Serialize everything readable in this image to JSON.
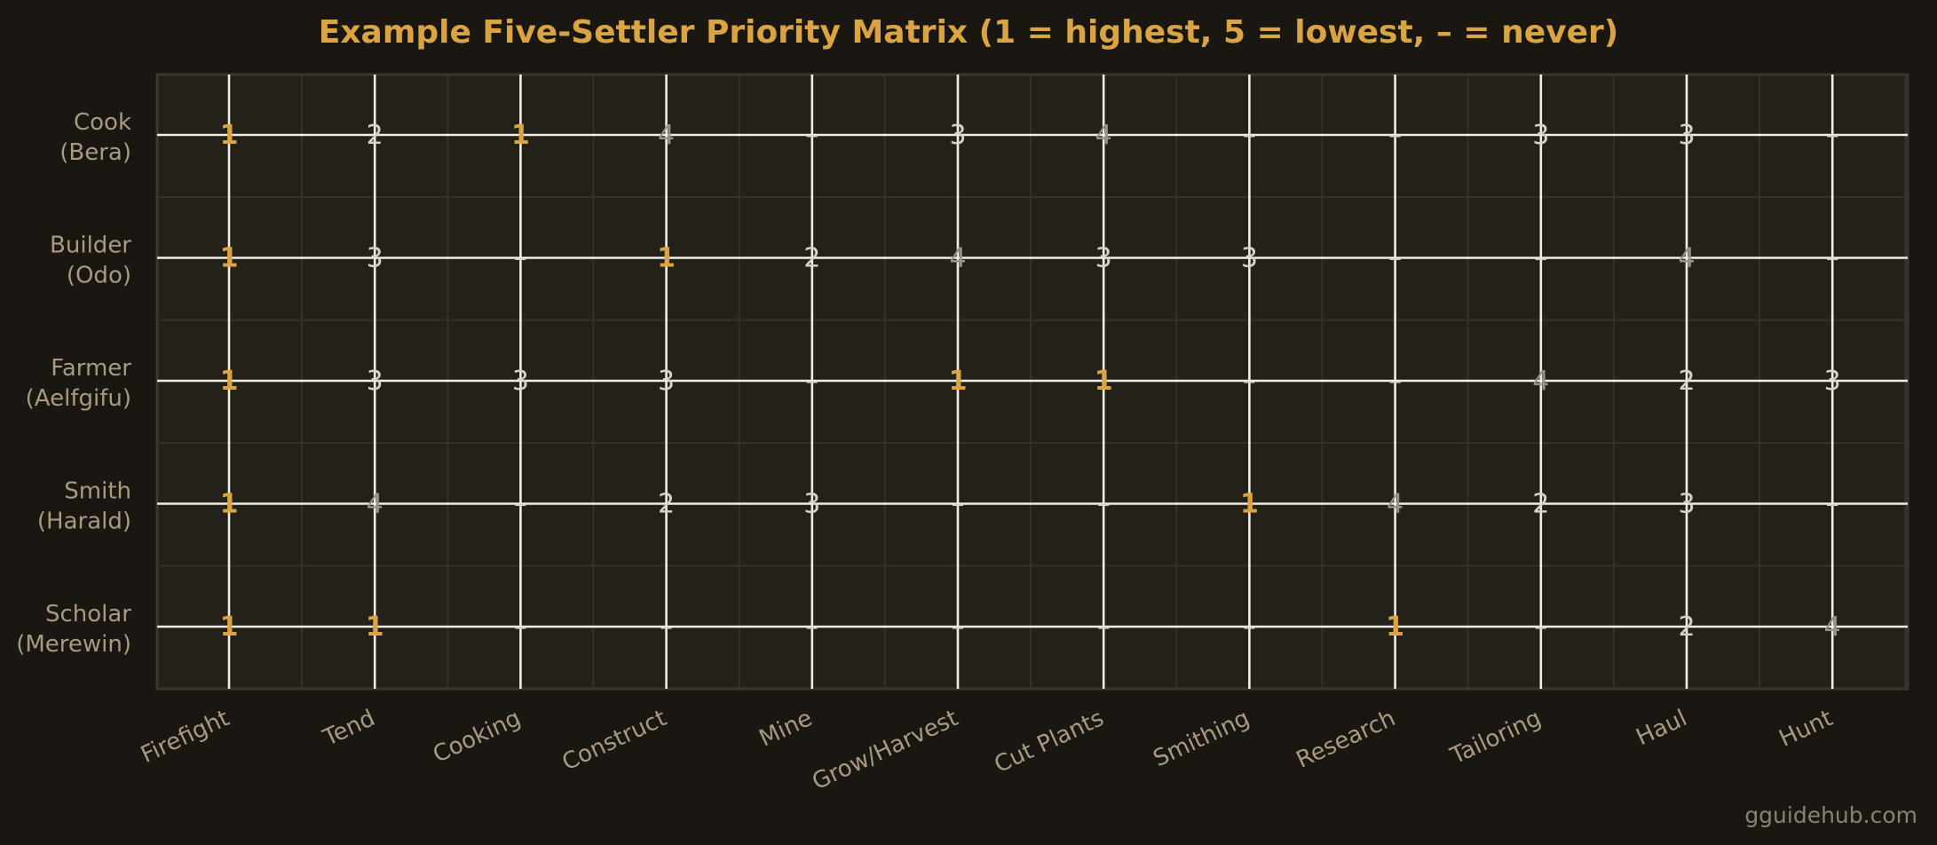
{
  "chart_data": {
    "type": "heatmap",
    "title": "Example Five-Settler Priority Matrix (1 = highest, 5 = lowest, – = never)",
    "x": [
      "Firefight",
      "Tend",
      "Cooking",
      "Construct",
      "Mine",
      "Grow/Harvest",
      "Cut Plants",
      "Smithing",
      "Research",
      "Tailoring",
      "Haul",
      "Hunt"
    ],
    "y": [
      [
        "Cook",
        "(Bera)"
      ],
      [
        "Builder",
        "(Odo)"
      ],
      [
        "Farmer",
        "(Aelfgifu)"
      ],
      [
        "Smith",
        "(Harald)"
      ],
      [
        "Scholar",
        "(Merewin)"
      ]
    ],
    "values": [
      [
        "1",
        "2",
        "1",
        "4",
        "–",
        "3",
        "4",
        "–",
        "–",
        "3",
        "3",
        "–"
      ],
      [
        "1",
        "3",
        "–",
        "1",
        "2",
        "4",
        "3",
        "3",
        "–",
        "–",
        "4",
        "–"
      ],
      [
        "1",
        "3",
        "3",
        "3",
        "–",
        "1",
        "1",
        "–",
        "–",
        "4",
        "2",
        "3"
      ],
      [
        "1",
        "4",
        "–",
        "2",
        "3",
        "–",
        "–",
        "1",
        "4",
        "2",
        "3",
        "–"
      ],
      [
        "1",
        "1",
        "–",
        "–",
        "–",
        "–",
        "–",
        "–",
        "1",
        "–",
        "2",
        "4"
      ]
    ],
    "grid": true
  },
  "watermark": "gguidehub.com",
  "colors": {
    "background": "#1a1612",
    "plot_bg": "#24201a",
    "accent": "#d9a441",
    "grid_minor": "#35322a",
    "crosshair": "#f2eee6",
    "text_muted": "#a89a80",
    "text_light": "#d8d2c6",
    "text_dim": "#9a9284"
  }
}
